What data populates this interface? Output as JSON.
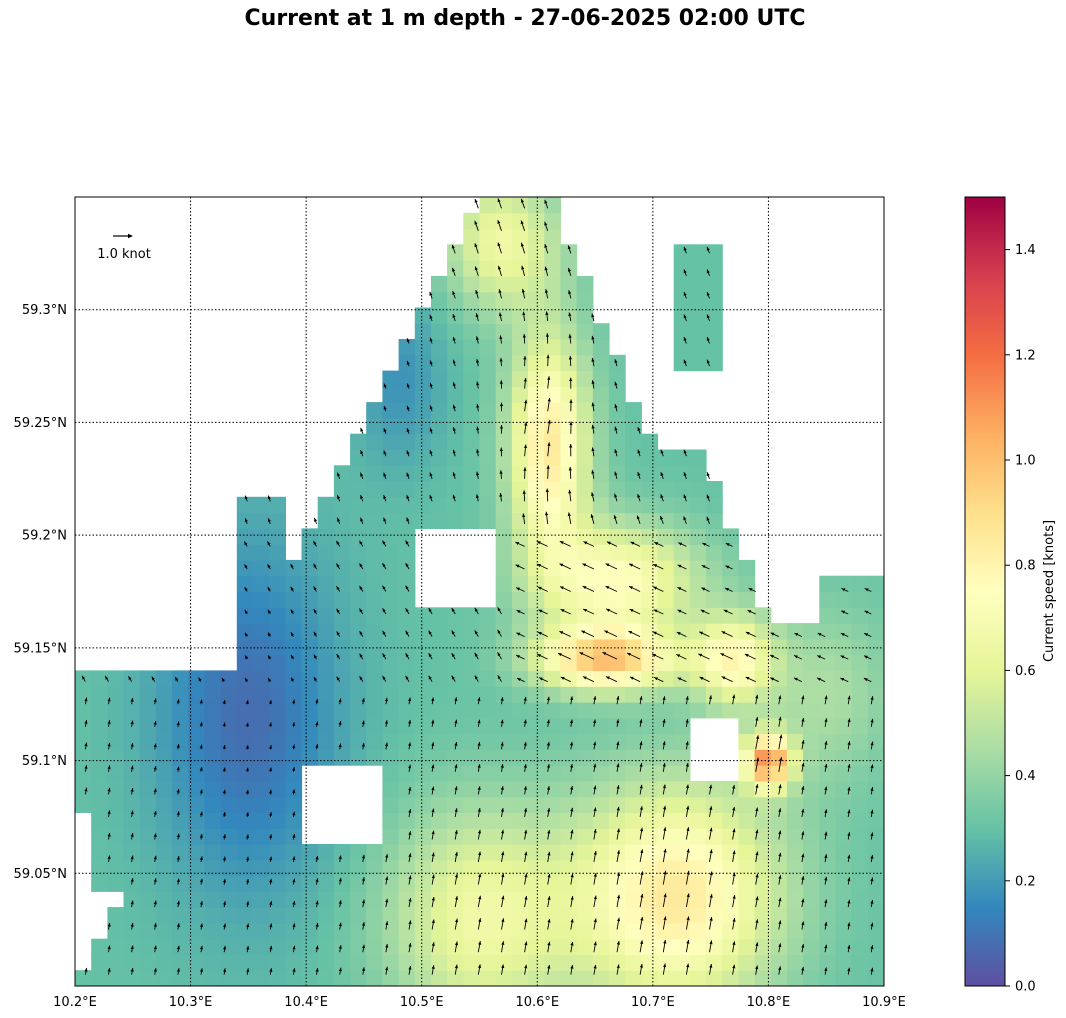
{
  "title": "Current at 1 m depth - 27-06-2025 02:00 UTC",
  "map": {
    "lon_range": [
      10.2,
      10.9
    ],
    "lat_range": [
      59.0,
      59.35
    ],
    "lon_ticks": [
      10.2,
      10.3,
      10.4,
      10.5,
      10.6,
      10.7,
      10.8,
      10.9
    ],
    "lon_tick_labels": [
      "10.2°E",
      "10.3°E",
      "10.4°E",
      "10.5°E",
      "10.6°E",
      "10.7°E",
      "10.8°E",
      "10.9°E"
    ],
    "lat_ticks": [
      59.05,
      59.1,
      59.15,
      59.2,
      59.25,
      59.3
    ],
    "lat_tick_labels": [
      "59.05°N",
      "59.1°N",
      "59.15°N",
      "59.2°N",
      "59.25°N",
      "59.3°N"
    ],
    "grid": "dotted",
    "land_color": "#ffffff"
  },
  "quiver_key": {
    "label": "1.0 knot",
    "speed": 1.0,
    "location": "top-left"
  },
  "colorbar": {
    "label": "Current speed [knots]",
    "range": [
      0,
      1.5
    ],
    "ticks": [
      0.0,
      0.2,
      0.4,
      0.6,
      0.8,
      1.0,
      1.2,
      1.4
    ],
    "tick_labels": [
      "0.0",
      "0.2",
      "0.4",
      "0.6",
      "0.8",
      "1.0",
      "1.2",
      "1.4"
    ],
    "colormap": "Spectral_r",
    "colors": [
      "#5e4fa2",
      "#3288bd",
      "#66c2a5",
      "#abdda4",
      "#e6f598",
      "#ffffbf",
      "#fee08b",
      "#fdae61",
      "#f46d43",
      "#d53e4f",
      "#9e0142"
    ]
  }
}
